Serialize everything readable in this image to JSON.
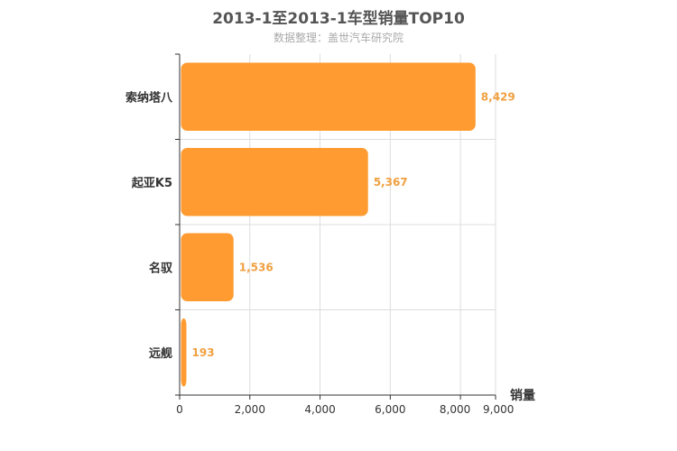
{
  "chart_data": {
    "type": "bar",
    "orientation": "horizontal",
    "title": "2013-1至2013-1车型销量TOP10",
    "subtitle": "数据整理：盖世汽车研究院",
    "categories": [
      "索纳塔八",
      "起亚K5",
      "名驭",
      "远舰"
    ],
    "values": [
      8429,
      5367,
      1536,
      193
    ],
    "value_labels": [
      "8,429",
      "5,367",
      "1,536",
      "193"
    ],
    "xlabel": "销量",
    "ylabel": "",
    "xlim": [
      0,
      9000
    ],
    "x_ticks": [
      0,
      2000,
      4000,
      6000,
      8000,
      9000
    ],
    "x_tick_labels": [
      "0",
      "2,000",
      "4,000",
      "6,000",
      "8,000",
      "9,000"
    ],
    "grid": true,
    "bar_color": "#ff9b30",
    "label_color": "#f0a040"
  }
}
